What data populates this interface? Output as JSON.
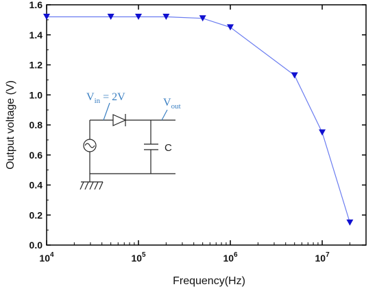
{
  "chart_data": {
    "type": "line",
    "xscale": "log",
    "xlim": [
      10000,
      30000000
    ],
    "ylim": [
      0.0,
      1.6
    ],
    "x_ticks": [
      {
        "base": "10",
        "exp": "4",
        "value": 10000
      },
      {
        "base": "10",
        "exp": "5",
        "value": 100000
      },
      {
        "base": "10",
        "exp": "6",
        "value": 1000000
      },
      {
        "base": "10",
        "exp": "7",
        "value": 10000000
      }
    ],
    "y_ticks": [
      "0.0",
      "0.2",
      "0.4",
      "0.6",
      "0.8",
      "1.0",
      "1.2",
      "1.4",
      "1.6"
    ],
    "xlabel": "Frequency(Hz)",
    "ylabel": "Output voltage (V)",
    "marker": "triangle-down",
    "color": "#1010d0",
    "line_color": "#6a7cf0",
    "series": [
      {
        "x": [
          10000,
          50000,
          100000,
          200000,
          500000,
          1000000,
          5000000,
          10000000,
          20000000
        ],
        "y": [
          1.52,
          1.52,
          1.52,
          1.52,
          1.51,
          1.45,
          1.13,
          0.75,
          0.15
        ]
      }
    ]
  },
  "inset": {
    "vin_main": "V",
    "vin_sub": "in",
    "vin_rest": " = 2V",
    "vout_main": "V",
    "vout_sub": "out",
    "cap_label": "C",
    "label_color": "#3a7fc2"
  }
}
